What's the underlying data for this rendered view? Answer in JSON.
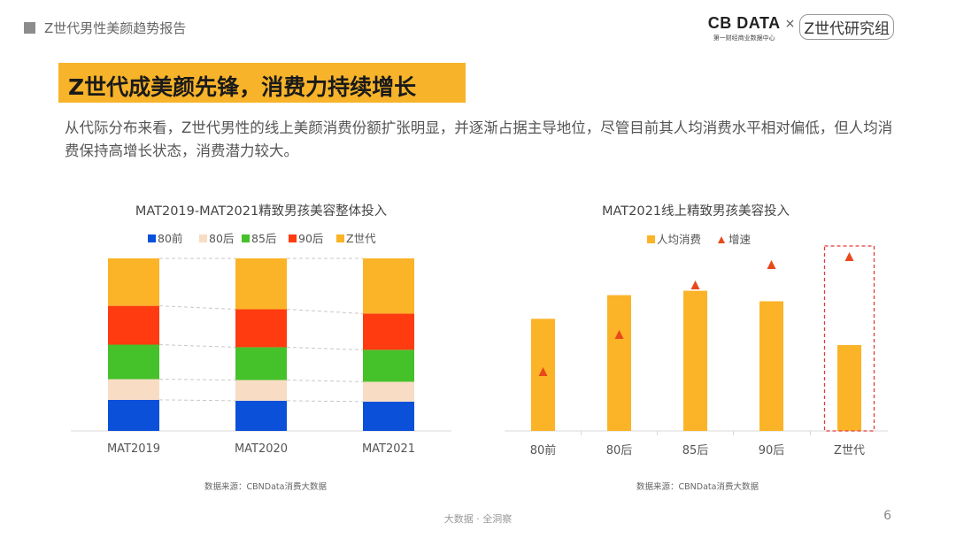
{
  "header": {
    "title": "Z世代男性美颜趋势报告",
    "logo_main": "CB DATA",
    "logo_sub": "第一财经商业数据中心",
    "logo_x": "×",
    "logo_partner": "Z世代研究组"
  },
  "slide": {
    "headline": "Z世代成美颜先锋，消费力持续增长",
    "description": "从代际分布来看，Z世代男性的线上美颜消费份额扩张明显，并逐渐占据主导地位，尽管目前其人均消费水平相对偏低，但人均消费保持高增长状态，消费潜力较大。",
    "footer": "大数据 · 全洞察",
    "page_number": "6"
  },
  "colors": {
    "blue": "#0b50d8",
    "peach": "#f8dcc4",
    "green": "#45c12a",
    "red": "#ff3b0f",
    "orange": "#fbb327",
    "triangle": "#e8481b",
    "highlight": "#e33a3a"
  },
  "chart_data": [
    {
      "type": "bar",
      "stacked": true,
      "percent": true,
      "title": "MAT2019-MAT2021精致男孩美容整体投入",
      "categories": [
        "MAT2019",
        "MAT2020",
        "MAT2021"
      ],
      "series": [
        {
          "name": "80前",
          "color": "#0b50d8",
          "values": [
            18,
            17.5,
            17
          ]
        },
        {
          "name": "80后",
          "color": "#f8dcc4",
          "values": [
            12,
            12,
            11.5
          ]
        },
        {
          "name": "85后",
          "color": "#45c12a",
          "values": [
            20,
            19,
            18.5
          ]
        },
        {
          "name": "90后",
          "color": "#ff3b0f",
          "values": [
            22.5,
            22,
            21
          ]
        },
        {
          "name": "Z世代",
          "color": "#fbb327",
          "values": [
            27.5,
            29.5,
            32
          ]
        }
      ],
      "legend": "top",
      "source": "数据来源：CBNData消费大数据"
    },
    {
      "type": "bar",
      "title": "MAT2021线上精致男孩美容投入",
      "categories": [
        "80前",
        "80后",
        "85后",
        "90后",
        "Z世代"
      ],
      "series": [
        {
          "name": "人均消费",
          "kind": "bar",
          "color": "#fbb327",
          "values": [
            128,
            155,
            160,
            148,
            98
          ]
        },
        {
          "name": "增速",
          "kind": "marker",
          "color": "#e8481b",
          "values": [
            58,
            100,
            156,
            179,
            188
          ]
        }
      ],
      "highlight": "Z世代",
      "legend": "top",
      "source": "数据来源：CBNData消费大数据"
    }
  ]
}
